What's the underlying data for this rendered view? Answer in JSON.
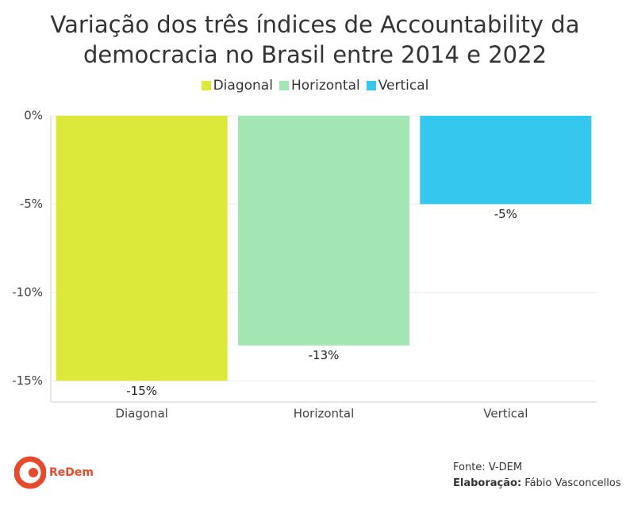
{
  "chart_data": {
    "type": "bar",
    "title": "Variação dos três índices de Accountability da democracia no Brasil entre 2014 e 2022",
    "categories": [
      "Diagonal",
      "Horizontal",
      "Vertical"
    ],
    "values": [
      -15,
      -13,
      -5
    ],
    "value_labels": [
      "-15%",
      "-13%",
      "-5%"
    ],
    "colors": [
      "#dce83a",
      "#a3e6b4",
      "#35c8ee"
    ],
    "ylim": [
      -16.2,
      0
    ],
    "yticks": [
      {
        "value": 0,
        "label": "0%"
      },
      {
        "value": -5,
        "label": "-5%"
      },
      {
        "value": -10,
        "label": "-10%"
      },
      {
        "value": -15,
        "label": "-15%"
      }
    ],
    "grid": true,
    "legend": "top"
  },
  "logo": "ReDem",
  "source": "Fonte: V-DEM",
  "credit_label": "Elaboração:",
  "credit": "Fábio Vasconcellos"
}
